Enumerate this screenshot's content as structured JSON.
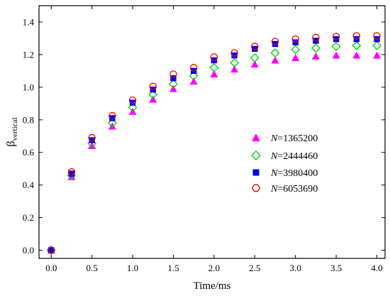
{
  "chart_data": {
    "type": "scatter",
    "title": "",
    "xlabel": "Time/ms",
    "ylabel_main": "β",
    "ylabel_sub": "vertical",
    "xlim": [
      -0.15,
      4.1
    ],
    "ylim": [
      -0.05,
      1.5
    ],
    "xticks": [
      0.0,
      0.5,
      1.0,
      1.5,
      2.0,
      2.5,
      3.0,
      3.5,
      4.0
    ],
    "yticks": [
      0.0,
      0.2,
      0.4,
      0.6,
      0.8,
      1.0,
      1.2,
      1.4
    ],
    "xtick_labels": [
      "0.0",
      "0.5",
      "1.0",
      "1.5",
      "2.0",
      "2.5",
      "3.0",
      "3.5",
      "4.0"
    ],
    "ytick_labels": [
      "0.0",
      "0.2",
      "0.4",
      "0.6",
      "0.8",
      "1.0",
      "1.2",
      "1.4"
    ],
    "grid": false,
    "legend_position": "center-right",
    "x": [
      0,
      0.25,
      0.5,
      0.75,
      1.0,
      1.25,
      1.5,
      1.75,
      2.0,
      2.25,
      2.5,
      2.75,
      3.0,
      3.25,
      3.5,
      3.75,
      4.0
    ],
    "series": [
      {
        "name_prefix": "N",
        "name_value": "=1365200",
        "marker": "triangle",
        "color": "#ff00ff",
        "values": [
          0.0,
          0.45,
          0.64,
          0.76,
          0.85,
          0.925,
          0.99,
          1.035,
          1.08,
          1.11,
          1.14,
          1.165,
          1.18,
          1.19,
          1.195,
          1.195,
          1.195
        ]
      },
      {
        "name_prefix": "N",
        "name_value": "=2444460",
        "marker": "diamond",
        "color": "#00cc00",
        "values": [
          0.0,
          0.46,
          0.655,
          0.78,
          0.875,
          0.955,
          1.02,
          1.07,
          1.12,
          1.15,
          1.18,
          1.21,
          1.23,
          1.24,
          1.25,
          1.255,
          1.255
        ]
      },
      {
        "name_prefix": "N",
        "name_value": "=3980400",
        "marker": "square",
        "color": "#0000ee",
        "values": [
          0.0,
          0.47,
          0.675,
          0.81,
          0.905,
          0.985,
          1.055,
          1.1,
          1.165,
          1.195,
          1.235,
          1.265,
          1.275,
          1.285,
          1.295,
          1.295,
          1.295
        ]
      },
      {
        "name_prefix": "N",
        "name_value": "=6053690",
        "marker": "circle",
        "color": "#ee0000",
        "values": [
          0.0,
          0.48,
          0.69,
          0.825,
          0.92,
          1.005,
          1.08,
          1.12,
          1.185,
          1.21,
          1.25,
          1.28,
          1.295,
          1.305,
          1.31,
          1.315,
          1.315
        ]
      }
    ]
  }
}
